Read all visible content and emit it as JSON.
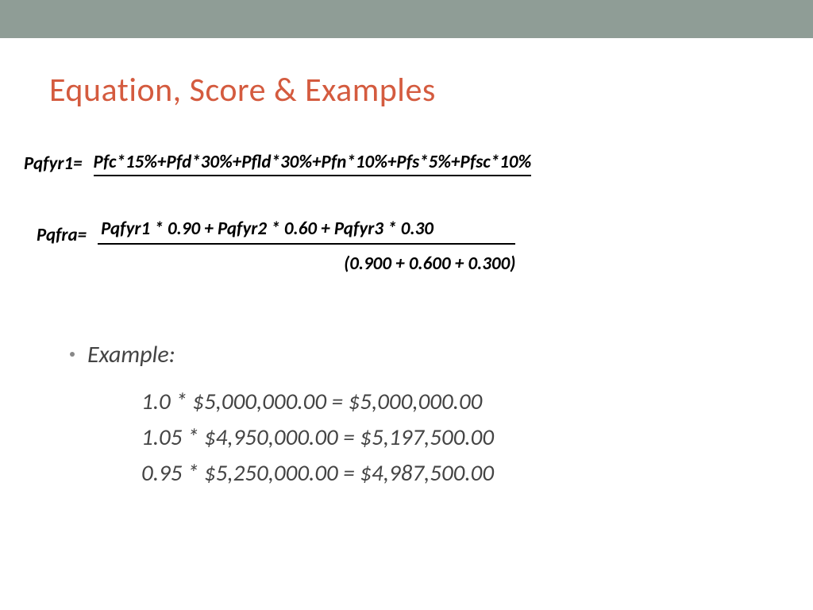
{
  "title": "Equation, Score & Examples",
  "eq1": {
    "label": "Pqfyr1=",
    "formula": "Pfc*15%+Pfd*30%+Pfld*30%+Pfn*10%+Pfs*5%+Pfsc*10%"
  },
  "eq2": {
    "label": "Pqfra=",
    "numerator": "Pqfyr1 * 0.90 + Pqfyr2 * 0.60 + Pqfyr3 * 0.30",
    "denominator": "(0.900 + 0.600 + 0.300)"
  },
  "example": {
    "heading": "Example:",
    "lines": [
      "1.0 * $5,000,000.00 = $5,000,000.00",
      "1.05 * $4,950,000.00 = $5,197,500.00",
      "0.95 * $5,250,000.00 = $4,987,500.00"
    ]
  },
  "colors": {
    "header_bar": "#8f9d96",
    "title": "#d45b3f",
    "text": "#444444",
    "formula": "#000000",
    "background": "#ffffff"
  },
  "typography": {
    "title_fontsize": 42,
    "formula_fontsize": 23,
    "example_fontsize": 29
  }
}
